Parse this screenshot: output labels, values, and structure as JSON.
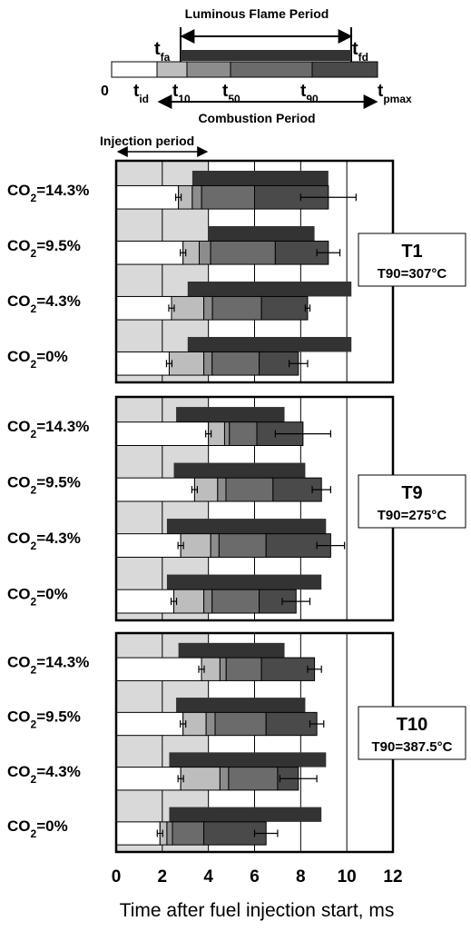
{
  "legend": {
    "luminous_label": "Luminous Flame Period",
    "combustion_label": "Combustion Period",
    "injection_label": "Injection period",
    "zero_label": "0",
    "markers": [
      {
        "key": "tfa",
        "main": "t",
        "sub": "fa"
      },
      {
        "key": "tfd",
        "main": "t",
        "sub": "fd"
      },
      {
        "key": "tid",
        "main": "t",
        "sub": "id"
      },
      {
        "key": "t10",
        "main": "t",
        "sub": "10"
      },
      {
        "key": "t50",
        "main": "t",
        "sub": "50"
      },
      {
        "key": "t90",
        "main": "t",
        "sub": "90"
      },
      {
        "key": "tpmax",
        "main": "t",
        "sub": "pmax"
      }
    ]
  },
  "colors": {
    "injection": "#d9d9d9",
    "luminous": "#333333",
    "s1": "#bdbdbd",
    "s2": "#8c8c8c",
    "s3": "#6b6b6b",
    "s4": "#4a4a4a",
    "white": "#ffffff"
  },
  "chart_data": {
    "type": "bar",
    "xlabel": "Time after fuel injection start, ms",
    "xlim": [
      0,
      12
    ],
    "xticks": [
      0,
      2,
      4,
      6,
      8,
      10,
      12
    ],
    "injection_period": [
      0,
      4
    ],
    "panels": [
      {
        "name": "T1",
        "subtitle": "T90=307°C",
        "rows": [
          {
            "label": "CO",
            "sub": "2",
            "suffix": "=14.3%",
            "tfa": 3.3,
            "tfd": 9.2,
            "tid": 2.7,
            "t10": 3.3,
            "t50": 6.0,
            "t90": 9.2,
            "err": 1.2
          },
          {
            "label": "CO",
            "sub": "2",
            "suffix": "=9.5%",
            "tfa": 4.0,
            "tfd": 8.6,
            "tid": 2.9,
            "t10": 3.6,
            "t50": 6.9,
            "t90": 9.2,
            "err": 0.5
          },
          {
            "label": "CO",
            "sub": "2",
            "suffix": "=4.3%",
            "tfa": 3.1,
            "tfd": 10.2,
            "tid": 2.4,
            "t10": 3.8,
            "t50": 6.3,
            "t90": 8.3,
            "err": 0.1
          },
          {
            "label": "CO",
            "sub": "2",
            "suffix": "=0%",
            "tfa": 3.1,
            "tfd": 10.2,
            "tid": 2.3,
            "t10": 3.8,
            "t50": 6.2,
            "t90": 7.9,
            "err": 0.4
          }
        ]
      },
      {
        "name": "T9",
        "subtitle": "T90=275°C",
        "rows": [
          {
            "label": "CO",
            "sub": "2",
            "suffix": "=14.3%",
            "tfa": 2.6,
            "tfd": 7.3,
            "tid": 4.0,
            "t10": 4.7,
            "t50": 6.1,
            "t90": 8.1,
            "err": 1.2
          },
          {
            "label": "CO",
            "sub": "2",
            "suffix": "=9.5%",
            "tfa": 2.5,
            "tfd": 8.2,
            "tid": 3.4,
            "t10": 4.4,
            "t50": 6.8,
            "t90": 8.9,
            "err": 0.4
          },
          {
            "label": "CO",
            "sub": "2",
            "suffix": "=4.3%",
            "tfa": 2.2,
            "tfd": 9.1,
            "tid": 2.8,
            "t10": 4.1,
            "t50": 6.5,
            "t90": 9.3,
            "err": 0.6
          },
          {
            "label": "CO",
            "sub": "2",
            "suffix": "=0%",
            "tfa": 2.2,
            "tfd": 8.9,
            "tid": 2.5,
            "t10": 3.8,
            "t50": 6.2,
            "t90": 7.8,
            "err": 0.6
          }
        ]
      },
      {
        "name": "T10",
        "subtitle": "T90=387.5°C",
        "rows": [
          {
            "label": "CO",
            "sub": "2",
            "suffix": "=14.3%",
            "tfa": 2.7,
            "tfd": 7.3,
            "tid": 3.7,
            "t10": 4.5,
            "t50": 6.3,
            "t90": 8.6,
            "err": 0.3
          },
          {
            "label": "CO",
            "sub": "2",
            "suffix": "=9.5%",
            "tfa": 2.6,
            "tfd": 8.2,
            "tid": 2.9,
            "t10": 3.9,
            "t50": 6.5,
            "t90": 8.7,
            "err": 0.3
          },
          {
            "label": "CO",
            "sub": "2",
            "suffix": "=4.3%",
            "tfa": 2.3,
            "tfd": 9.1,
            "tid": 2.8,
            "t10": 4.5,
            "t50": 7.0,
            "t90": 7.9,
            "err": 0.8
          },
          {
            "label": "CO",
            "sub": "2",
            "suffix": "=0%",
            "tfa": 2.3,
            "tfd": 8.9,
            "tid": 1.9,
            "t10": 2.2,
            "t50": 3.8,
            "t90": 6.5,
            "err": 0.5
          }
        ]
      }
    ]
  }
}
